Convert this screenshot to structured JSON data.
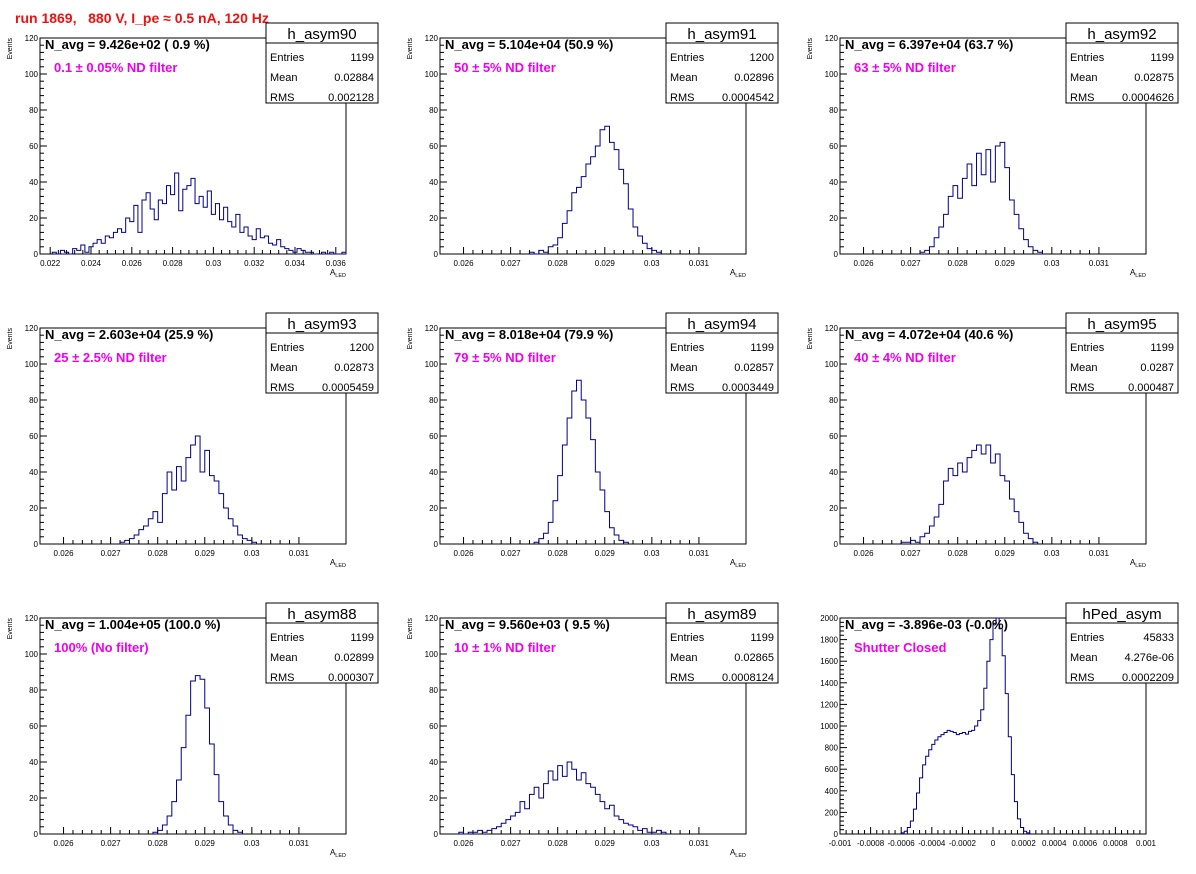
{
  "canvas": {
    "title": "run 1869,   880 V, I_pe ≈ 0.5 nA, 120 Hz",
    "colors": {
      "title": "#ee1111",
      "annotation": "#ee00ee",
      "histogram": "#00008b"
    }
  },
  "chart_data": [
    {
      "type": "bar",
      "name": "h_asym90",
      "navg": "N_avg = 9.426e+02 ( 0.9 %)",
      "filter_label": "0.1 ± 0.05% ND filter",
      "stats": {
        "entries": "1199",
        "mean": "0.02884",
        "rms": "0.002128"
      },
      "xlabel": "A_LED",
      "ylabel": "Events",
      "xlim": [
        0.0215,
        0.0365
      ],
      "ylim": [
        0,
        120
      ],
      "x_ticks": [
        0.022,
        0.024,
        0.026,
        0.028,
        0.03,
        0.032,
        0.034,
        0.036
      ],
      "x_ticklabels": [
        "0.022",
        "0.024",
        "0.026",
        "0.028",
        "0.03",
        "0.032",
        "0.034",
        "0.036"
      ],
      "y_ticks": [
        0,
        20,
        40,
        60,
        80,
        100,
        120
      ],
      "y_ticklabels": [
        "0",
        "20",
        "40",
        "60",
        "80",
        "100",
        "120"
      ],
      "bins": {
        "start": 0.0221,
        "width": 0.0002,
        "counts": [
          1,
          0,
          2,
          1,
          0,
          3,
          2,
          5,
          1,
          4,
          6,
          8,
          6,
          10,
          9,
          12,
          14,
          12,
          20,
          18,
          27,
          12,
          30,
          34,
          25,
          19,
          30,
          28,
          38,
          33,
          45,
          24,
          36,
          38,
          42,
          28,
          32,
          26,
          35,
          22,
          28,
          19,
          26,
          18,
          15,
          22,
          12,
          15,
          10,
          8,
          14,
          9,
          10,
          6,
          5,
          8,
          4,
          3,
          2,
          1,
          3,
          2,
          1,
          1,
          0,
          0,
          1,
          0,
          1,
          0,
          0,
          1
        ]
      }
    },
    {
      "type": "bar",
      "name": "h_asym91",
      "navg": "N_avg = 5.104e+04 (50.9 %)",
      "filter_label": "50 ± 5% ND filter",
      "stats": {
        "entries": "1200",
        "mean": "0.02896",
        "rms": "0.0004542"
      },
      "xlabel": "A_LED",
      "ylabel": "Events",
      "xlim": [
        0.0255,
        0.032
      ],
      "ylim": [
        0,
        120
      ],
      "x_ticks": [
        0.026,
        0.027,
        0.028,
        0.029,
        0.03,
        0.031
      ],
      "x_ticklabels": [
        "0.026",
        "0.027",
        "0.028",
        "0.029",
        "0.03",
        "0.031"
      ],
      "y_ticks": [
        0,
        20,
        40,
        60,
        80,
        100,
        120
      ],
      "y_ticklabels": [
        "0",
        "20",
        "40",
        "60",
        "80",
        "100",
        "120"
      ],
      "bins": {
        "start": 0.0274,
        "width": 0.0001,
        "counts": [
          1,
          0,
          2,
          1,
          4,
          5,
          9,
          17,
          24,
          34,
          37,
          43,
          50,
          54,
          60,
          69,
          71,
          62,
          58,
          47,
          39,
          25,
          15,
          10,
          6,
          3,
          2,
          1
        ]
      }
    },
    {
      "type": "bar",
      "name": "h_asym92",
      "navg": "N_avg = 6.397e+04 (63.7 %)",
      "filter_label": "63 ± 5% ND filter",
      "stats": {
        "entries": "1199",
        "mean": "0.02875",
        "rms": "0.0004626"
      },
      "xlabel": "A_LED",
      "ylabel": "Events",
      "xlim": [
        0.0255,
        0.032
      ],
      "ylim": [
        0,
        120
      ],
      "x_ticks": [
        0.026,
        0.027,
        0.028,
        0.029,
        0.03,
        0.031
      ],
      "x_ticklabels": [
        "0.026",
        "0.027",
        "0.028",
        "0.029",
        "0.03",
        "0.031"
      ],
      "y_ticks": [
        0,
        20,
        40,
        60,
        80,
        100,
        120
      ],
      "y_ticklabels": [
        "0",
        "20",
        "40",
        "60",
        "80",
        "100",
        "120"
      ],
      "bins": {
        "start": 0.0272,
        "width": 0.0001,
        "counts": [
          1,
          2,
          4,
          9,
          15,
          22,
          32,
          38,
          31,
          42,
          50,
          38,
          56,
          44,
          58,
          40,
          60,
          62,
          48,
          30,
          22,
          14,
          8,
          4,
          2,
          1
        ]
      }
    },
    {
      "type": "bar",
      "name": "h_asym93",
      "navg": "N_avg = 2.603e+04 (25.9 %)",
      "filter_label": "25 ± 2.5% ND filter",
      "stats": {
        "entries": "1200",
        "mean": "0.02873",
        "rms": "0.0005459"
      },
      "xlabel": "A_LED",
      "ylabel": "Events",
      "xlim": [
        0.0255,
        0.032
      ],
      "ylim": [
        0,
        120
      ],
      "x_ticks": [
        0.026,
        0.027,
        0.028,
        0.029,
        0.03,
        0.031
      ],
      "x_ticklabels": [
        "0.026",
        "0.027",
        "0.028",
        "0.029",
        "0.03",
        "0.031"
      ],
      "y_ticks": [
        0,
        20,
        40,
        60,
        80,
        100,
        120
      ],
      "y_ticklabels": [
        "0",
        "20",
        "40",
        "60",
        "80",
        "100",
        "120"
      ],
      "bins": {
        "start": 0.0272,
        "width": 0.0001,
        "counts": [
          1,
          2,
          3,
          5,
          8,
          10,
          14,
          18,
          12,
          28,
          40,
          30,
          43,
          35,
          48,
          55,
          60,
          40,
          52,
          38,
          35,
          28,
          20,
          14,
          10,
          5,
          3,
          2,
          1
        ]
      }
    },
    {
      "type": "bar",
      "name": "h_asym94",
      "navg": "N_avg = 8.018e+04 (79.9 %)",
      "filter_label": "79 ± 5% ND filter",
      "stats": {
        "entries": "1199",
        "mean": "0.02857",
        "rms": "0.0003449"
      },
      "xlabel": "A_LED",
      "ylabel": "Events",
      "xlim": [
        0.0255,
        0.032
      ],
      "ylim": [
        0,
        120
      ],
      "x_ticks": [
        0.026,
        0.027,
        0.028,
        0.029,
        0.03,
        0.031
      ],
      "x_ticklabels": [
        "0.026",
        "0.027",
        "0.028",
        "0.029",
        "0.03",
        "0.031"
      ],
      "y_ticks": [
        0,
        20,
        40,
        60,
        80,
        100,
        120
      ],
      "y_ticklabels": [
        "0",
        "20",
        "40",
        "60",
        "80",
        "100",
        "120"
      ],
      "bins": {
        "start": 0.0275,
        "width": 0.0001,
        "counts": [
          1,
          3,
          6,
          12,
          24,
          38,
          55,
          70,
          85,
          91,
          80,
          70,
          58,
          40,
          30,
          18,
          9,
          5,
          2,
          1
        ]
      }
    },
    {
      "type": "bar",
      "name": "h_asym95",
      "navg": "N_avg = 4.072e+04 (40.6 %)",
      "filter_label": "40 ± 4% ND filter",
      "stats": {
        "entries": "1199",
        "mean": "0.0287",
        "rms": "0.000487"
      },
      "xlabel": "A_LED",
      "ylabel": "Events",
      "xlim": [
        0.0255,
        0.032
      ],
      "ylim": [
        0,
        120
      ],
      "x_ticks": [
        0.026,
        0.027,
        0.028,
        0.029,
        0.03,
        0.031
      ],
      "x_ticklabels": [
        "0.026",
        "0.027",
        "0.028",
        "0.029",
        "0.03",
        "0.031"
      ],
      "y_ticks": [
        0,
        20,
        40,
        60,
        80,
        100,
        120
      ],
      "y_ticklabels": [
        "0",
        "20",
        "40",
        "60",
        "80",
        "100",
        "120"
      ],
      "bins": {
        "start": 0.0268,
        "width": 0.0001,
        "counts": [
          1,
          1,
          2,
          1,
          4,
          6,
          10,
          15,
          22,
          35,
          42,
          38,
          45,
          40,
          48,
          52,
          55,
          50,
          55,
          45,
          50,
          38,
          35,
          25,
          18,
          12,
          6,
          3,
          1
        ]
      }
    },
    {
      "type": "bar",
      "name": "h_asym88",
      "navg": "N_avg = 1.004e+05 (100.0 %)",
      "filter_label": "100% (No filter)",
      "stats": {
        "entries": "1199",
        "mean": "0.02899",
        "rms": "0.000307"
      },
      "xlabel": "A_LED",
      "ylabel": "Events",
      "xlim": [
        0.0255,
        0.032
      ],
      "ylim": [
        0,
        120
      ],
      "x_ticks": [
        0.026,
        0.027,
        0.028,
        0.029,
        0.03,
        0.031
      ],
      "x_ticklabels": [
        "0.026",
        "0.027",
        "0.028",
        "0.029",
        "0.03",
        "0.031"
      ],
      "y_ticks": [
        0,
        20,
        40,
        60,
        80,
        100,
        120
      ],
      "y_ticklabels": [
        "0",
        "20",
        "40",
        "60",
        "80",
        "100",
        "120"
      ],
      "bins": {
        "start": 0.0279,
        "width": 0.0001,
        "counts": [
          1,
          2,
          5,
          10,
          18,
          30,
          48,
          66,
          85,
          88,
          86,
          70,
          50,
          33,
          18,
          10,
          5,
          2,
          1
        ]
      }
    },
    {
      "type": "bar",
      "name": "h_asym89",
      "navg": "N_avg = 9.560e+03 ( 9.5 %)",
      "filter_label": "10 ± 1% ND filter",
      "stats": {
        "entries": "1199",
        "mean": "0.02865",
        "rms": "0.0008124"
      },
      "xlabel": "A_LED",
      "ylabel": "Events",
      "xlim": [
        0.0255,
        0.032
      ],
      "ylim": [
        0,
        120
      ],
      "x_ticks": [
        0.026,
        0.027,
        0.028,
        0.029,
        0.03,
        0.031
      ],
      "x_ticklabels": [
        "0.026",
        "0.027",
        "0.028",
        "0.029",
        "0.03",
        "0.031"
      ],
      "y_ticks": [
        0,
        20,
        40,
        60,
        80,
        100,
        120
      ],
      "y_ticklabels": [
        "0",
        "20",
        "40",
        "60",
        "80",
        "100",
        "120"
      ],
      "bins": {
        "start": 0.0259,
        "width": 0.0001,
        "counts": [
          1,
          0,
          1,
          1,
          2,
          1,
          2,
          3,
          4,
          6,
          8,
          10,
          12,
          18,
          14,
          22,
          26,
          20,
          28,
          35,
          30,
          38,
          32,
          40,
          36,
          30,
          34,
          28,
          26,
          22,
          18,
          14,
          16,
          10,
          8,
          6,
          5,
          4,
          2,
          3,
          1,
          1,
          2,
          1
        ]
      }
    },
    {
      "type": "bar",
      "name": "hPed_asym",
      "navg": "N_avg = -3.896e-03 (-0.0%)",
      "filter_label": "Shutter Closed",
      "stats": {
        "entries": "45833",
        "mean": "4.276e-06",
        "rms": "0.0002209"
      },
      "xlabel": "",
      "ylabel": "",
      "xlim": [
        -0.001,
        0.001
      ],
      "ylim": [
        0,
        2000
      ],
      "x_ticks": [
        -0.001,
        -0.0008,
        -0.0006,
        -0.0004,
        -0.0002,
        0,
        0.0002,
        0.0004,
        0.0006,
        0.0008,
        0.001
      ],
      "x_ticklabels": [
        "-0.001",
        "-0.0008",
        "-0.0006",
        "-0.0004",
        "-0.0002",
        "0",
        "0.0002",
        "0.0004",
        "0.0006",
        "0.0008",
        "0.001"
      ],
      "y_ticks": [
        0,
        200,
        400,
        600,
        800,
        1000,
        1200,
        1400,
        1600,
        1800,
        2000
      ],
      "y_ticklabels": [
        "0",
        "200",
        "400",
        "600",
        "800",
        "1000",
        "1200",
        "1400",
        "1600",
        "1800",
        "2000"
      ],
      "bins": {
        "start": -0.0006,
        "width": 2e-05,
        "counts": [
          10,
          25,
          60,
          120,
          230,
          380,
          520,
          640,
          720,
          780,
          830,
          870,
          900,
          920,
          940,
          960,
          950,
          940,
          920,
          930,
          940,
          925,
          950,
          960,
          1000,
          1050,
          1150,
          1350,
          1600,
          1800,
          1950,
          2000,
          1900,
          1650,
          1300,
          900,
          550,
          300,
          140,
          60,
          25,
          10
        ]
      }
    }
  ]
}
